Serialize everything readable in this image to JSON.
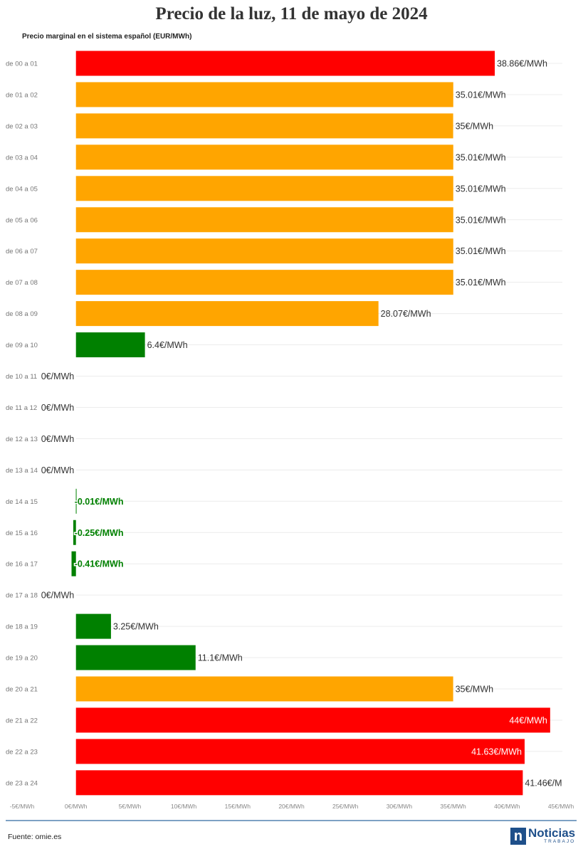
{
  "chart_data": {
    "type": "bar",
    "orientation": "horizontal",
    "title": "Precio de la luz, 11 de mayo de 2024",
    "subtitle": "Precio marginal en el sistema español (EUR/MWh)",
    "categories": [
      "de 00 a 01",
      "de 01 a 02",
      "de 02 a 03",
      "de 03 a 04",
      "de 04 a 05",
      "de 05 a 06",
      "de 06 a 07",
      "de 07 a 08",
      "de 08 a 09",
      "de 09 a 10",
      "de 10 a 11",
      "de 11 a 12",
      "de 12 a 13",
      "de 13 a 14",
      "de 14 a 15",
      "de 15 a 16",
      "de 16 a 17",
      "de 17 a 18",
      "de 18 a 19",
      "de 19 a 20",
      "de 20 a 21",
      "de 21 a 22",
      "de 22 a 23",
      "de 23 a 24"
    ],
    "values": [
      38.86,
      35.01,
      35,
      35.01,
      35.01,
      35.01,
      35.01,
      35.01,
      28.07,
      6.4,
      0,
      0,
      0,
      0,
      -0.01,
      -0.25,
      -0.41,
      0,
      3.25,
      11.1,
      35,
      44,
      41.63,
      41.46
    ],
    "value_labels": [
      "38.86€/MWh",
      "35.01€/MWh",
      "35€/MWh",
      "35.01€/MWh",
      "35.01€/MWh",
      "35.01€/MWh",
      "35.01€/MWh",
      "35.01€/MWh",
      "28.07€/MWh",
      "6.4€/MWh",
      "0€/MWh",
      "0€/MWh",
      "0€/MWh",
      "0€/MWh",
      "-0.01€/MWh",
      "-0.25€/MWh",
      "-0.41€/MWh",
      "0€/MWh",
      "3.25€/MWh",
      "11.1€/MWh",
      "35€/MWh",
      "44€/MWh",
      "41.63€/MWh",
      "41.46€/M"
    ],
    "colors": [
      "#ff0000",
      "#ffa500",
      "#ffa500",
      "#ffa500",
      "#ffa500",
      "#ffa500",
      "#ffa500",
      "#ffa500",
      "#ffa500",
      "#008000",
      "#008000",
      "#008000",
      "#008000",
      "#008000",
      "#008000",
      "#008000",
      "#008000",
      "#008000",
      "#008000",
      "#008000",
      "#ffa500",
      "#ff0000",
      "#ff0000",
      "#ff0000"
    ],
    "xlim": [
      -5,
      45
    ],
    "x_ticks": [
      -5,
      0,
      5,
      10,
      15,
      20,
      25,
      30,
      35,
      40,
      45
    ],
    "x_tick_labels": [
      "-5€/MWh",
      "0€/MWh",
      "5€/MWh",
      "10€/MWh",
      "15€/MWh",
      "20€/MWh",
      "25€/MWh",
      "30€/MWh",
      "35€/MWh",
      "40€/MWh",
      "45€/MWh"
    ],
    "grid": "horizontal"
  },
  "footer": {
    "source": "Fuente: omie.es",
    "brand_icon": "n",
    "brand_name": "Noticias",
    "brand_sub": "TRABAJO"
  },
  "colors": {
    "high": "#ff0000",
    "medium": "#ffa500",
    "low": "#008000",
    "brand": "#1e4f8a"
  }
}
